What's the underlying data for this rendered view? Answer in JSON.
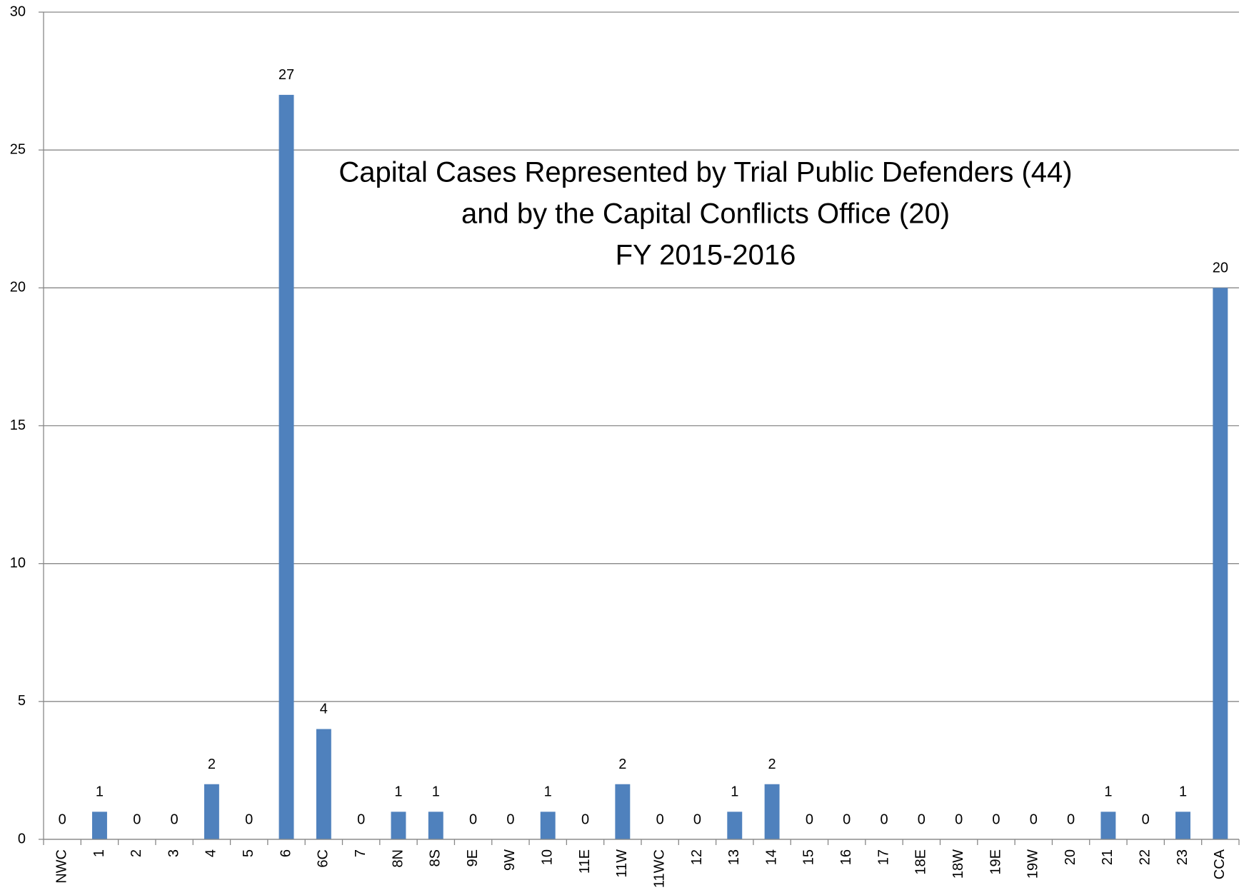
{
  "chart_data": {
    "type": "bar",
    "title": [
      "Capital Cases Represented by Trial Public Defenders (44)",
      "and by the Capital Conflicts Office (20)",
      "FY 2015-2016"
    ],
    "categories": [
      "NWC",
      "1",
      "2",
      "3",
      "4",
      "5",
      "6",
      "6C",
      "7",
      "8N",
      "8S",
      "9E",
      "9W",
      "10",
      "11E",
      "11W",
      "11WC",
      "12",
      "13",
      "14",
      "15",
      "16",
      "17",
      "18E",
      "18W",
      "19E",
      "19W",
      "20",
      "21",
      "22",
      "23",
      "CCA"
    ],
    "values": [
      0,
      1,
      0,
      0,
      2,
      0,
      27,
      4,
      0,
      1,
      1,
      0,
      0,
      1,
      0,
      2,
      0,
      0,
      1,
      2,
      0,
      0,
      0,
      0,
      0,
      0,
      0,
      0,
      1,
      0,
      1,
      20
    ],
    "color": "#4f81bd",
    "ylim": [
      0,
      30
    ],
    "yticks": [
      0,
      5,
      10,
      15,
      20,
      25,
      30
    ],
    "grid": true
  }
}
